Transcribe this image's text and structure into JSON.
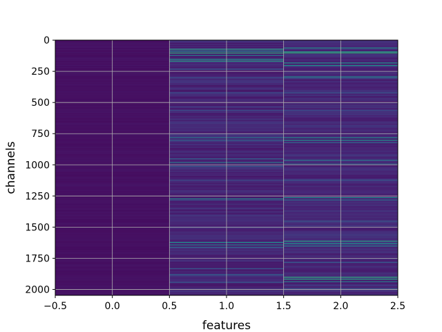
{
  "chart_data": {
    "type": "heatmap",
    "title": "",
    "xlabel": "features",
    "ylabel": "channels",
    "xlim": [
      -0.5,
      2.5
    ],
    "ylim": [
      2047.5,
      -0.5
    ],
    "y_inverted": true,
    "grid": true,
    "colormap": "viridis",
    "x_ticks": [
      -0.5,
      0.0,
      0.5,
      1.0,
      1.5,
      2.0,
      2.5
    ],
    "x_tick_labels": [
      "−0.5",
      "0.0",
      "0.5",
      "1.0",
      "1.5",
      "2.0",
      "2.5"
    ],
    "y_ticks": [
      0,
      250,
      500,
      750,
      1000,
      1250,
      1500,
      1750,
      2000
    ],
    "y_tick_labels": [
      "0",
      "250",
      "500",
      "750",
      "1000",
      "1250",
      "1500",
      "1750",
      "2000"
    ],
    "features": [
      0,
      1,
      2
    ],
    "n_channels": 2048,
    "columns": [
      {
        "feature": 0,
        "base_level": 0.06,
        "bright_channels": []
      },
      {
        "feature": 1,
        "base_level": 0.14,
        "bright_channels": [
          [
            70,
            0.55
          ],
          [
            85,
            0.5
          ],
          [
            100,
            0.6
          ],
          [
            120,
            0.45
          ],
          [
            150,
            0.5
          ],
          [
            165,
            0.55
          ],
          [
            230,
            0.35
          ],
          [
            300,
            0.3
          ],
          [
            420,
            0.3
          ],
          [
            560,
            0.3
          ],
          [
            780,
            0.45
          ],
          [
            800,
            0.4
          ],
          [
            950,
            0.4
          ],
          [
            980,
            0.45
          ],
          [
            1010,
            0.35
          ],
          [
            1120,
            0.3
          ],
          [
            1270,
            0.45
          ],
          [
            1280,
            0.35
          ],
          [
            1620,
            0.5
          ],
          [
            1640,
            0.45
          ],
          [
            1660,
            0.4
          ],
          [
            1830,
            0.35
          ],
          [
            1880,
            0.4
          ],
          [
            1940,
            0.35
          ]
        ]
      },
      {
        "feature": 2,
        "base_level": 0.15,
        "bright_channels": [
          [
            60,
            0.5
          ],
          [
            90,
            0.55
          ],
          [
            100,
            0.6
          ],
          [
            180,
            0.5
          ],
          [
            200,
            0.5
          ],
          [
            290,
            0.45
          ],
          [
            300,
            0.4
          ],
          [
            420,
            0.35
          ],
          [
            560,
            0.3
          ],
          [
            780,
            0.5
          ],
          [
            800,
            0.5
          ],
          [
            820,
            0.4
          ],
          [
            960,
            0.45
          ],
          [
            990,
            0.4
          ],
          [
            1120,
            0.35
          ],
          [
            1260,
            0.5
          ],
          [
            1280,
            0.4
          ],
          [
            1450,
            0.35
          ],
          [
            1610,
            0.55
          ],
          [
            1630,
            0.5
          ],
          [
            1650,
            0.45
          ],
          [
            1780,
            0.35
          ],
          [
            1900,
            0.6
          ],
          [
            1915,
            0.55
          ],
          [
            1935,
            0.45
          ],
          [
            1990,
            0.35
          ]
        ]
      }
    ]
  }
}
